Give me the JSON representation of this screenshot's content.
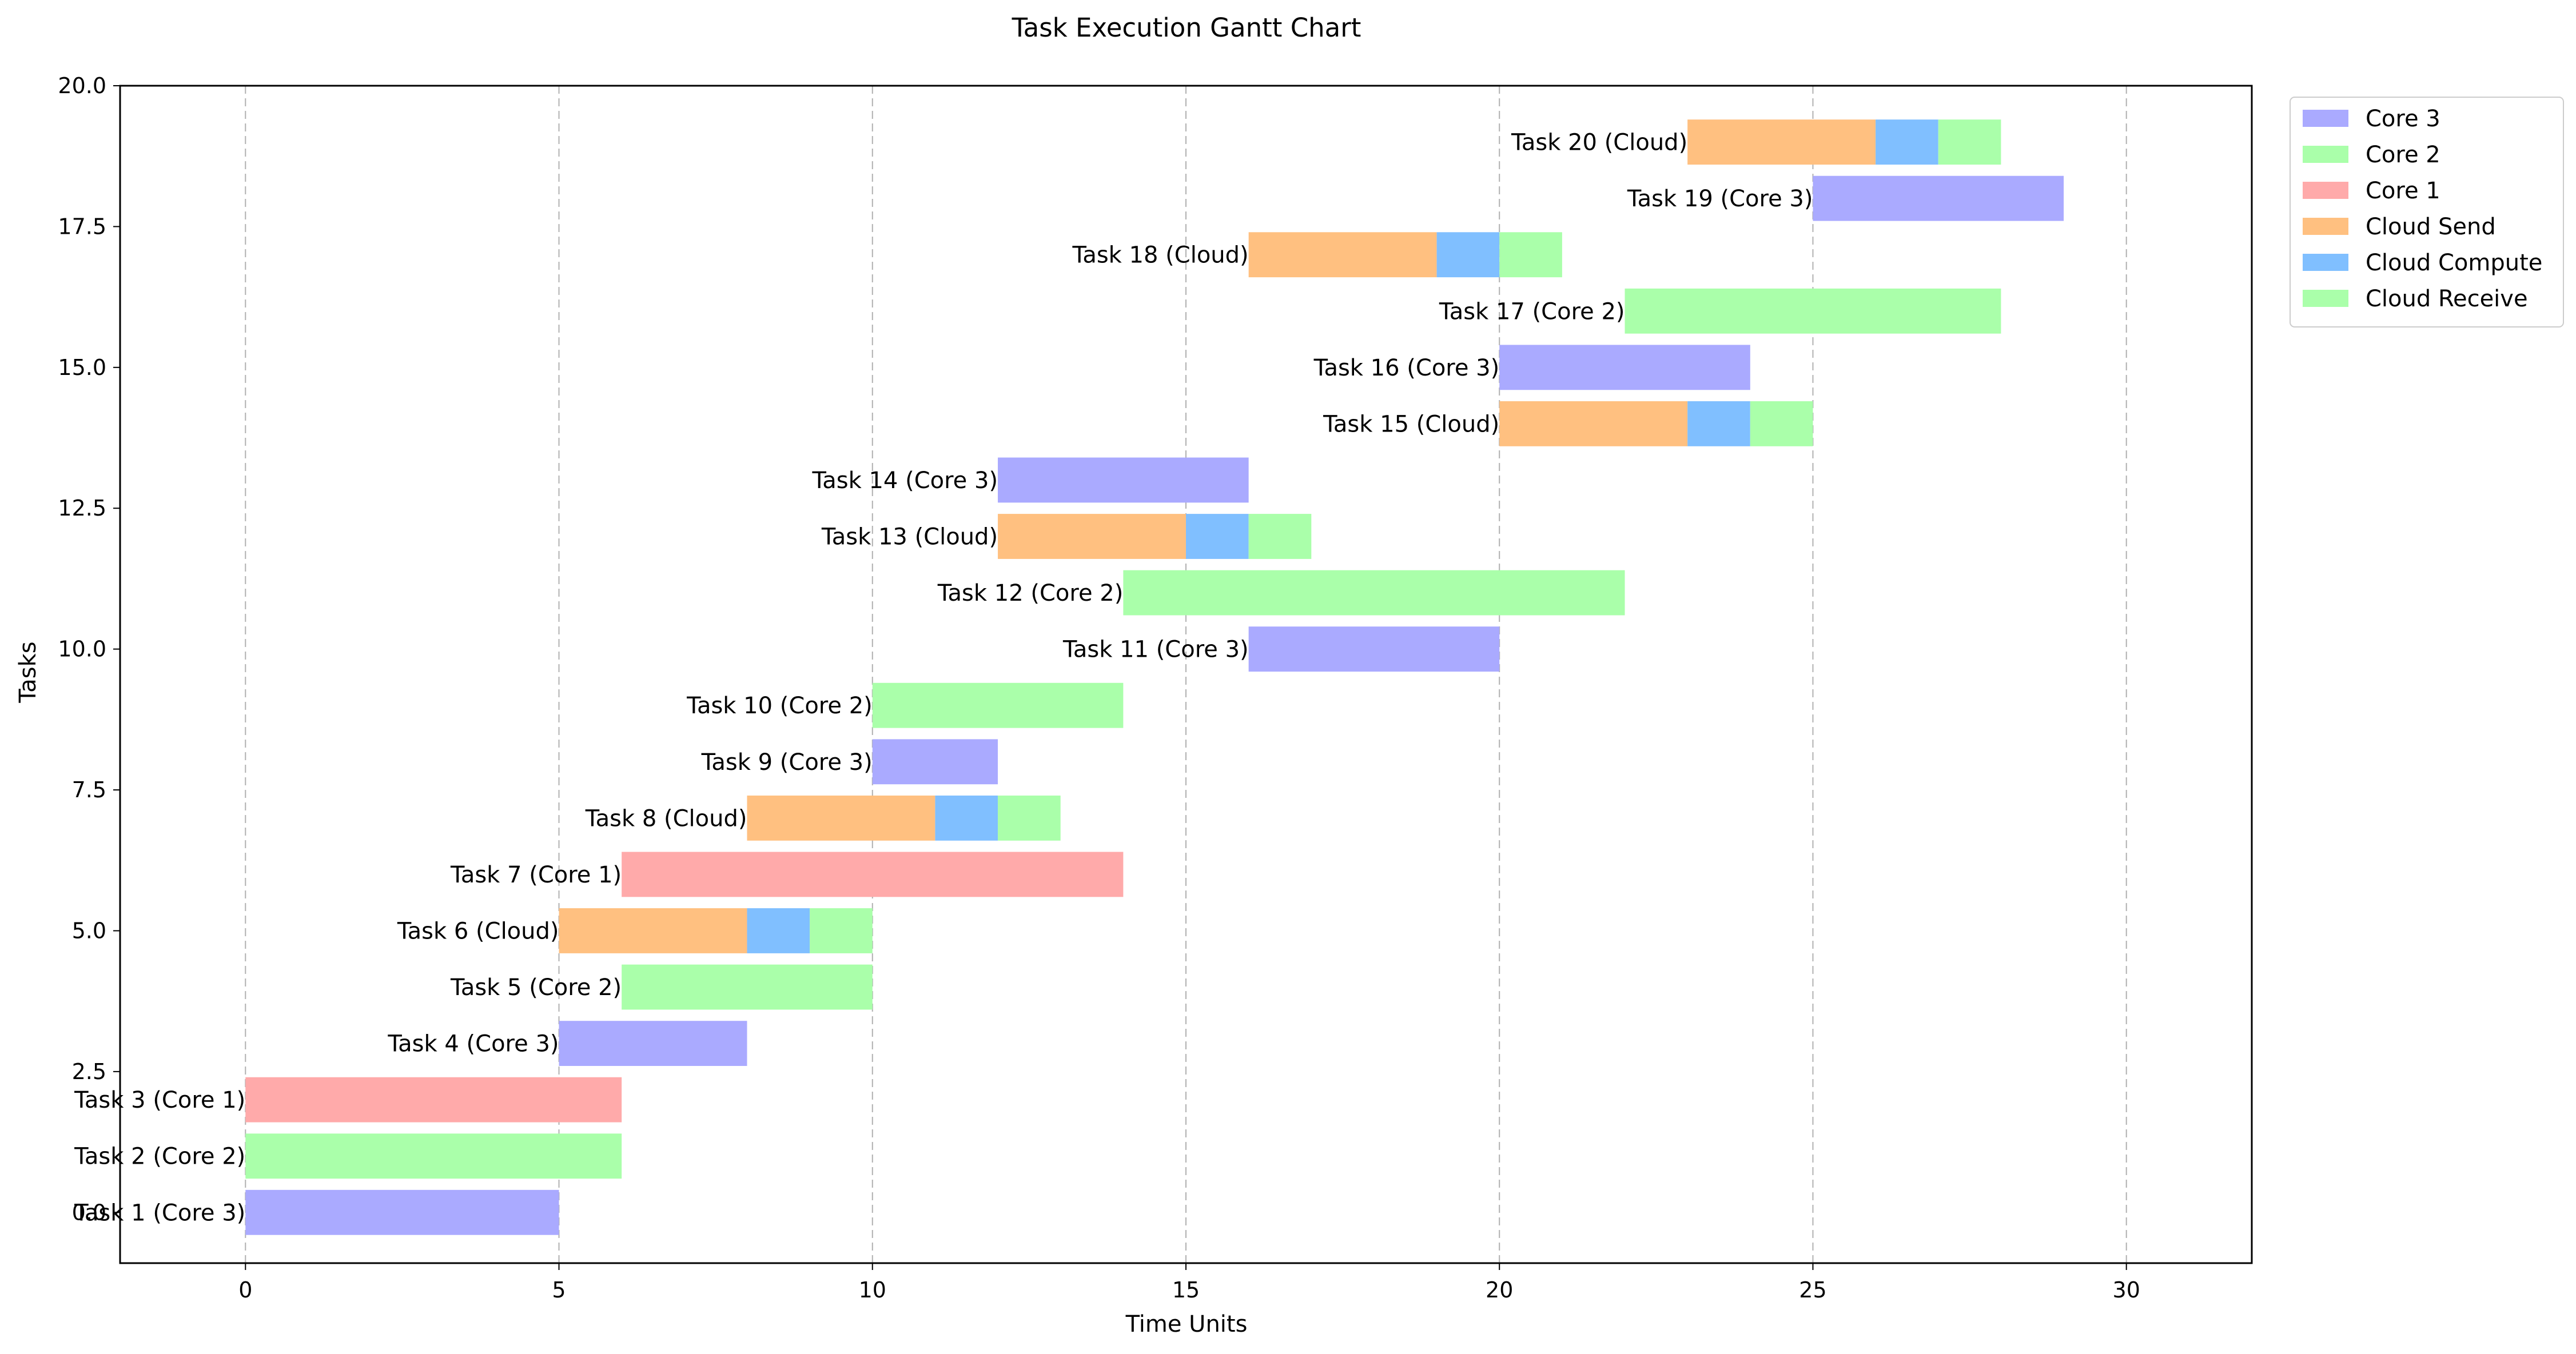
{
  "chart_data": {
    "type": "gantt",
    "title": "Task Execution Gantt Chart",
    "xlabel": "Time Units",
    "ylabel": "Tasks",
    "xlim": [
      -2,
      32
    ],
    "ylim": [
      -0.9,
      20
    ],
    "xticks": [
      0,
      5,
      10,
      15,
      20,
      25,
      30
    ],
    "xtick_labels": [
      "0",
      "5",
      "10",
      "15",
      "20",
      "25",
      "30"
    ],
    "yticks": [
      0,
      2.5,
      5,
      7.5,
      10,
      12.5,
      15,
      17.5,
      20
    ],
    "ytick_labels": [
      "0.0",
      "2.5",
      "5.0",
      "7.5",
      "10.0",
      "12.5",
      "15.0",
      "17.5",
      "20.0"
    ],
    "grid": "x-dashed",
    "legend_position": "outside-top-right",
    "colors": {
      "Core 1": "#ffaaaa",
      "Core 2": "#aaffaa",
      "Core 3": "#aaaaff",
      "Cloud Send": "#ffc080",
      "Cloud Compute": "#80bfff",
      "Cloud Receive": "#aaffaa"
    },
    "legend": [
      "Core 3",
      "Core 2",
      "Core 1",
      "Cloud Send",
      "Cloud Compute",
      "Cloud Receive"
    ],
    "tasks": [
      {
        "label": "Task 1 (Core 3)",
        "y": 0,
        "segments": [
          {
            "kind": "Core 3",
            "start": 0,
            "end": 5
          }
        ]
      },
      {
        "label": "Task 2 (Core 2)",
        "y": 1,
        "segments": [
          {
            "kind": "Core 2",
            "start": 0,
            "end": 6
          }
        ]
      },
      {
        "label": "Task 3 (Core 1)",
        "y": 2,
        "segments": [
          {
            "kind": "Core 1",
            "start": 0,
            "end": 6
          }
        ]
      },
      {
        "label": "Task 4 (Core 3)",
        "y": 3,
        "segments": [
          {
            "kind": "Core 3",
            "start": 5,
            "end": 8
          }
        ]
      },
      {
        "label": "Task 5 (Core 2)",
        "y": 4,
        "segments": [
          {
            "kind": "Core 2",
            "start": 6,
            "end": 10
          }
        ]
      },
      {
        "label": "Task 6 (Cloud)",
        "y": 5,
        "segments": [
          {
            "kind": "Cloud Send",
            "start": 5,
            "end": 8
          },
          {
            "kind": "Cloud Compute",
            "start": 8,
            "end": 9
          },
          {
            "kind": "Cloud Receive",
            "start": 9,
            "end": 10
          }
        ]
      },
      {
        "label": "Task 7 (Core 1)",
        "y": 6,
        "segments": [
          {
            "kind": "Core 1",
            "start": 6,
            "end": 14
          }
        ]
      },
      {
        "label": "Task 8 (Cloud)",
        "y": 7,
        "segments": [
          {
            "kind": "Cloud Send",
            "start": 8,
            "end": 11
          },
          {
            "kind": "Cloud Compute",
            "start": 11,
            "end": 12
          },
          {
            "kind": "Cloud Receive",
            "start": 12,
            "end": 13
          }
        ]
      },
      {
        "label": "Task 9 (Core 3)",
        "y": 8,
        "segments": [
          {
            "kind": "Core 3",
            "start": 10,
            "end": 12
          }
        ]
      },
      {
        "label": "Task 10 (Core 2)",
        "y": 9,
        "segments": [
          {
            "kind": "Core 2",
            "start": 10,
            "end": 14
          }
        ]
      },
      {
        "label": "Task 11 (Core 3)",
        "y": 10,
        "segments": [
          {
            "kind": "Core 3",
            "start": 16,
            "end": 20
          }
        ]
      },
      {
        "label": "Task 12 (Core 2)",
        "y": 11,
        "segments": [
          {
            "kind": "Core 2",
            "start": 14,
            "end": 22
          }
        ]
      },
      {
        "label": "Task 13 (Cloud)",
        "y": 12,
        "segments": [
          {
            "kind": "Cloud Send",
            "start": 12,
            "end": 15
          },
          {
            "kind": "Cloud Compute",
            "start": 15,
            "end": 16
          },
          {
            "kind": "Cloud Receive",
            "start": 16,
            "end": 17
          }
        ]
      },
      {
        "label": "Task 14 (Core 3)",
        "y": 13,
        "segments": [
          {
            "kind": "Core 3",
            "start": 12,
            "end": 16
          }
        ]
      },
      {
        "label": "Task 15 (Cloud)",
        "y": 14,
        "segments": [
          {
            "kind": "Cloud Send",
            "start": 20,
            "end": 23
          },
          {
            "kind": "Cloud Compute",
            "start": 23,
            "end": 24
          },
          {
            "kind": "Cloud Receive",
            "start": 24,
            "end": 25
          }
        ]
      },
      {
        "label": "Task 16 (Core 3)",
        "y": 15,
        "segments": [
          {
            "kind": "Core 3",
            "start": 20,
            "end": 24
          }
        ]
      },
      {
        "label": "Task 17 (Core 2)",
        "y": 16,
        "segments": [
          {
            "kind": "Core 2",
            "start": 22,
            "end": 28
          }
        ]
      },
      {
        "label": "Task 18 (Cloud)",
        "y": 17,
        "segments": [
          {
            "kind": "Cloud Send",
            "start": 16,
            "end": 19
          },
          {
            "kind": "Cloud Compute",
            "start": 19,
            "end": 20
          },
          {
            "kind": "Cloud Receive",
            "start": 20,
            "end": 21
          }
        ]
      },
      {
        "label": "Task 19 (Core 3)",
        "y": 18,
        "segments": [
          {
            "kind": "Core 3",
            "start": 25,
            "end": 29
          }
        ]
      },
      {
        "label": "Task 20 (Cloud)",
        "y": 19,
        "segments": [
          {
            "kind": "Cloud Send",
            "start": 23,
            "end": 26
          },
          {
            "kind": "Cloud Compute",
            "start": 26,
            "end": 27
          },
          {
            "kind": "Cloud Receive",
            "start": 27,
            "end": 28
          }
        ]
      }
    ]
  }
}
